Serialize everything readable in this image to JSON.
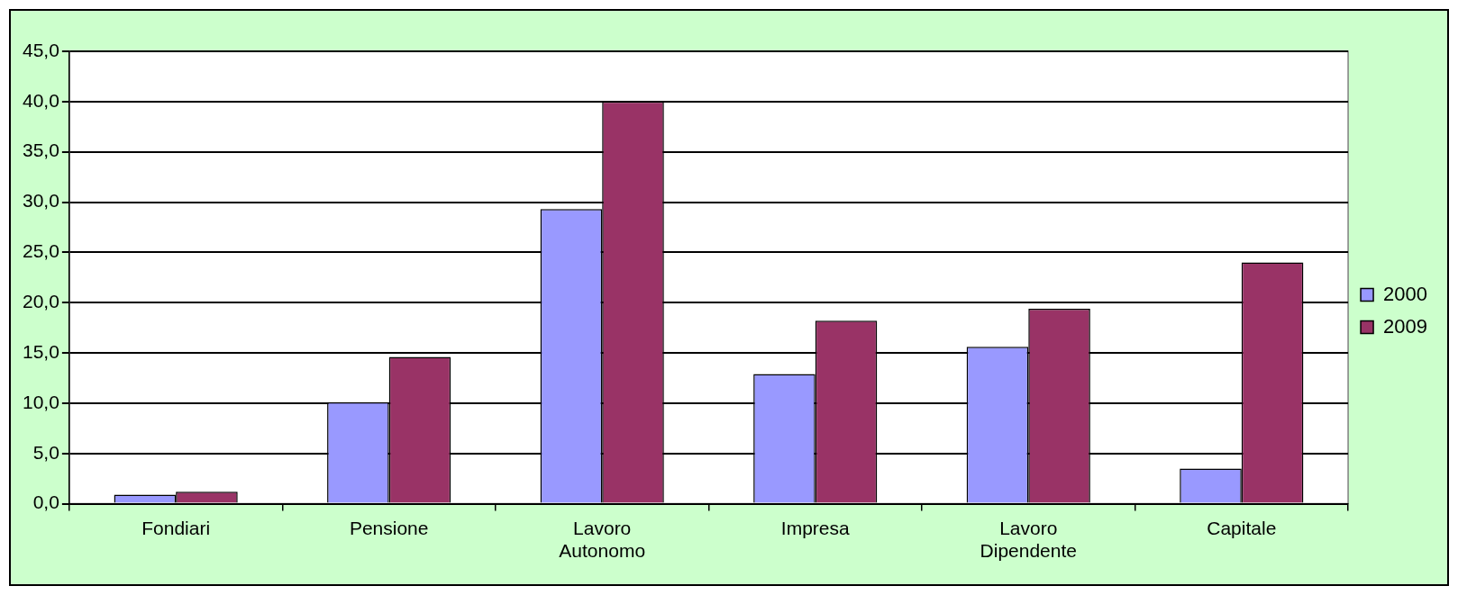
{
  "chart_data": {
    "type": "bar",
    "categories": [
      "Fondiari",
      "Pensione",
      "Lavoro Autonomo",
      "Impresa",
      "Lavoro Dipendente",
      "Capitale"
    ],
    "series": [
      {
        "name": "2000",
        "color": "#9999ff",
        "values": [
          0.9,
          10.1,
          29.3,
          12.9,
          15.6,
          3.5
        ]
      },
      {
        "name": "2009",
        "color": "#993366",
        "values": [
          1.2,
          14.6,
          40.0,
          18.2,
          19.4,
          24.0
        ]
      }
    ],
    "ylim": [
      0,
      45
    ],
    "yticks": [
      {
        "value": 0,
        "label": "0,0"
      },
      {
        "value": 5,
        "label": "5,0"
      },
      {
        "value": 10,
        "label": "10,0"
      },
      {
        "value": 15,
        "label": "15,0"
      },
      {
        "value": 20,
        "label": "20,0"
      },
      {
        "value": 25,
        "label": "25,0"
      },
      {
        "value": 30,
        "label": "30,0"
      },
      {
        "value": 35,
        "label": "35,0"
      },
      {
        "value": 40,
        "label": "40,0"
      },
      {
        "value": 45,
        "label": "45,0"
      }
    ],
    "grid": "y",
    "legend": "right"
  }
}
